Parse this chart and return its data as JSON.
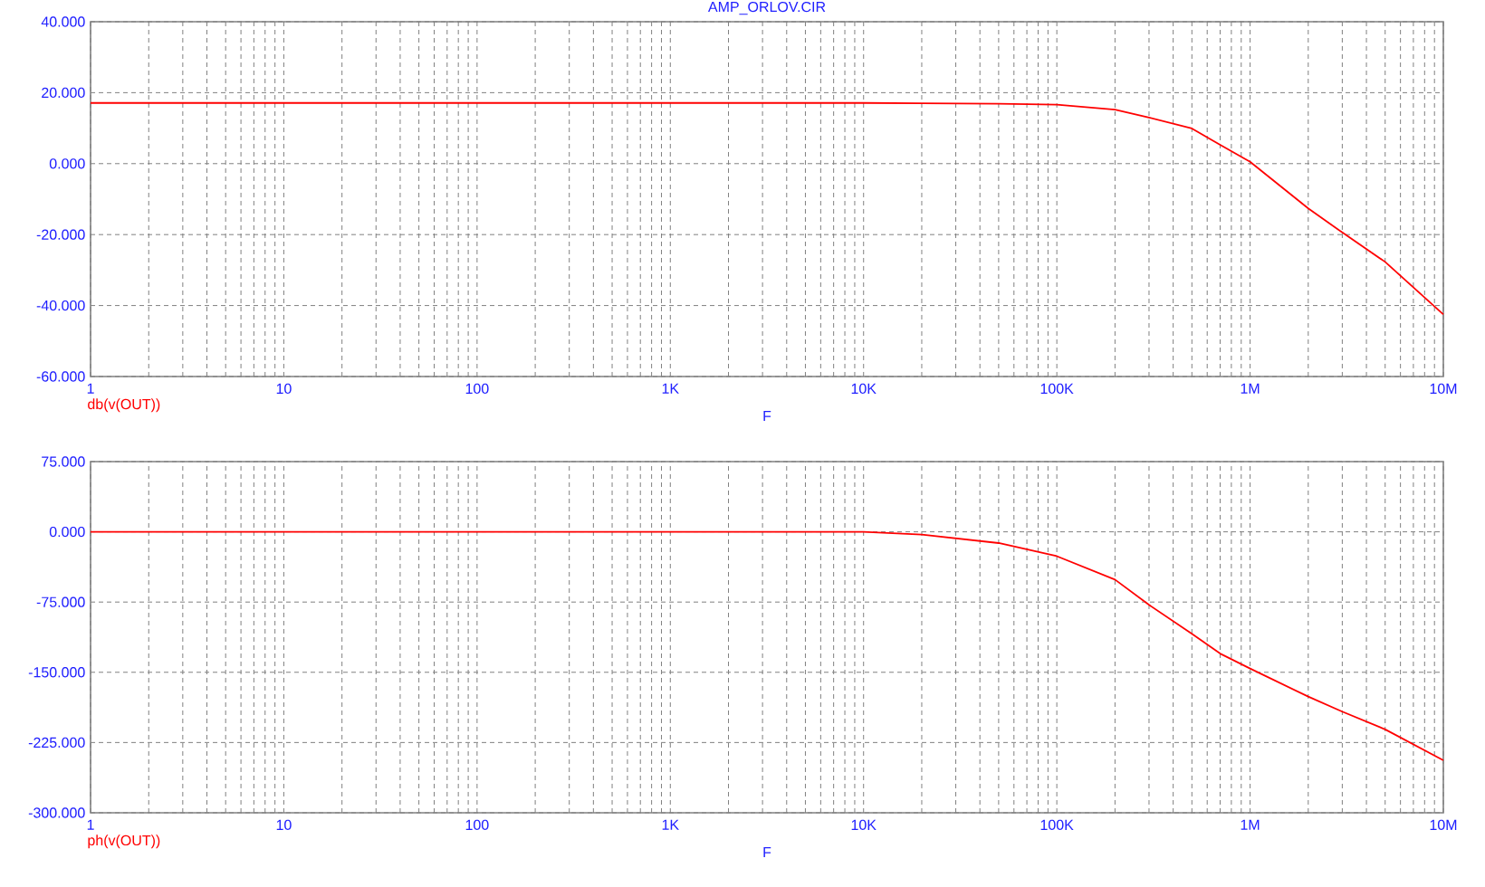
{
  "chart_data": [
    {
      "type": "line",
      "title": "AMP_ORLOV.CIR",
      "xlabel": "F",
      "log": "x",
      "grid": true,
      "xlim": [
        1,
        10000000
      ],
      "ylim": [
        -60,
        40
      ],
      "xticks": [
        1,
        10,
        100,
        {
          "value": 1000,
          "label": "1K"
        },
        {
          "value": 10000,
          "label": "10K"
        },
        {
          "value": 100000,
          "label": "100K"
        },
        {
          "value": 1000000,
          "label": "1M"
        },
        {
          "value": 10000000,
          "label": "10M"
        }
      ],
      "yticks": [
        {
          "value": -60,
          "label": "-60.000"
        },
        {
          "value": -40,
          "label": "-40.000"
        },
        {
          "value": -20,
          "label": "-20.000"
        },
        {
          "value": 0,
          "label": "0.000"
        },
        {
          "value": 20,
          "label": "20.000"
        },
        {
          "value": 40,
          "label": "40.000"
        }
      ],
      "series": [
        {
          "name": "db(v(OUT))",
          "color": "#ff0000",
          "x": [
            1,
            10,
            100,
            1000,
            10000,
            20000,
            50000,
            100000,
            200000,
            300000,
            500000,
            700000,
            1000000,
            2000000,
            3000000,
            5000000,
            10000000
          ],
          "values": [
            17.1,
            17.1,
            17.1,
            17.1,
            17.1,
            17.0,
            16.9,
            16.6,
            15.2,
            13.0,
            9.9,
            5.3,
            0.5,
            -12.6,
            -19.4,
            -27.7,
            -42.5
          ]
        }
      ]
    },
    {
      "type": "line",
      "xlabel": "F",
      "log": "x",
      "grid": true,
      "xlim": [
        1,
        10000000
      ],
      "ylim": [
        -300,
        75
      ],
      "xticks": [
        1,
        10,
        100,
        {
          "value": 1000,
          "label": "1K"
        },
        {
          "value": 10000,
          "label": "10K"
        },
        {
          "value": 100000,
          "label": "100K"
        },
        {
          "value": 1000000,
          "label": "1M"
        },
        {
          "value": 10000000,
          "label": "10M"
        }
      ],
      "yticks": [
        {
          "value": -300,
          "label": "-300.000"
        },
        {
          "value": -225,
          "label": "-225.000"
        },
        {
          "value": -150,
          "label": "-150.000"
        },
        {
          "value": -75,
          "label": "-75.000"
        },
        {
          "value": 0,
          "label": "0.000"
        },
        {
          "value": 75,
          "label": "75.000"
        }
      ],
      "series": [
        {
          "name": "ph(v(OUT))",
          "color": "#ff0000",
          "x": [
            1,
            10,
            100,
            1000,
            10000,
            20000,
            50000,
            100000,
            200000,
            300000,
            500000,
            700000,
            1000000,
            2000000,
            3000000,
            5000000,
            10000000
          ],
          "values": [
            0,
            0,
            0,
            0,
            0,
            -3,
            -12,
            -26,
            -51,
            -78,
            -109,
            -130,
            -146,
            -176,
            -192,
            -211,
            -244
          ]
        }
      ]
    }
  ]
}
